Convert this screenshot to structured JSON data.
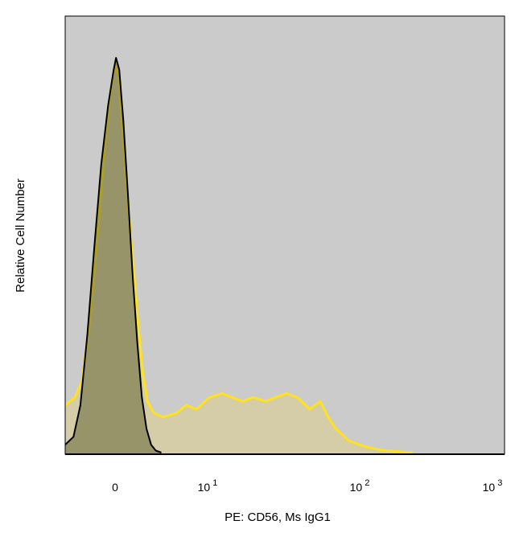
{
  "chart_data": {
    "type": "area",
    "title": "",
    "xlabel": "PE: CD56, Ms IgG1",
    "ylabel": "Relative Cell Number",
    "x_scale": "biexponential",
    "x_ticks": [
      {
        "value": 0,
        "base": "0",
        "exp": ""
      },
      {
        "value": 10,
        "base": "10",
        "exp": "1"
      },
      {
        "value": 100,
        "base": "10",
        "exp": "2"
      },
      {
        "value": 1000,
        "base": "10",
        "exp": "3"
      }
    ],
    "xlim": [
      -3.6,
      1000
    ],
    "ylim": [
      0,
      100
    ],
    "grid": false,
    "legend": "none",
    "background_color": "#cbcbcb",
    "series": [
      {
        "name": "",
        "stroke": "#ffe21f",
        "fill": "#ded08a",
        "fill_opacity": 0.55,
        "points": [
          [
            -3.6,
            12
          ],
          [
            -2.9,
            14
          ],
          [
            -2.4,
            18
          ],
          [
            -1.8,
            34
          ],
          [
            -1.2,
            58
          ],
          [
            -0.7,
            79
          ],
          [
            -0.3,
            92
          ],
          [
            0.05,
            99
          ],
          [
            0.4,
            95
          ],
          [
            0.8,
            82
          ],
          [
            1.3,
            66
          ],
          [
            1.8,
            52
          ],
          [
            2.4,
            35
          ],
          [
            3.0,
            20
          ],
          [
            3.5,
            13
          ],
          [
            4.2,
            10
          ],
          [
            5.2,
            9
          ],
          [
            6.6,
            10
          ],
          [
            7.7,
            12
          ],
          [
            8.8,
            11
          ],
          [
            10.3,
            14
          ],
          [
            12.5,
            15
          ],
          [
            14.5,
            14
          ],
          [
            17,
            13
          ],
          [
            20,
            14
          ],
          [
            24,
            13
          ],
          [
            28,
            14
          ],
          [
            33,
            15
          ],
          [
            39,
            14
          ],
          [
            47,
            11
          ],
          [
            55,
            13
          ],
          [
            62,
            9
          ],
          [
            70,
            6
          ],
          [
            85,
            3
          ],
          [
            100,
            2
          ],
          [
            120,
            1.2
          ],
          [
            150,
            0.6
          ],
          [
            190,
            0.3
          ],
          [
            250,
            0
          ]
        ]
      },
      {
        "name": "",
        "stroke": "#000000",
        "fill": "#5c5c2c",
        "fill_opacity": 0.5,
        "points": [
          [
            -3.6,
            2
          ],
          [
            -3.0,
            4
          ],
          [
            -2.5,
            12
          ],
          [
            -2.0,
            30
          ],
          [
            -1.5,
            52
          ],
          [
            -1.0,
            73
          ],
          [
            -0.5,
            88
          ],
          [
            -0.1,
            97
          ],
          [
            0.1,
            100
          ],
          [
            0.45,
            97
          ],
          [
            0.9,
            84
          ],
          [
            1.4,
            65
          ],
          [
            1.9,
            45
          ],
          [
            2.4,
            28
          ],
          [
            2.9,
            14
          ],
          [
            3.4,
            6
          ],
          [
            3.9,
            2
          ],
          [
            4.4,
            0.5
          ],
          [
            5.0,
            0
          ]
        ]
      }
    ]
  }
}
